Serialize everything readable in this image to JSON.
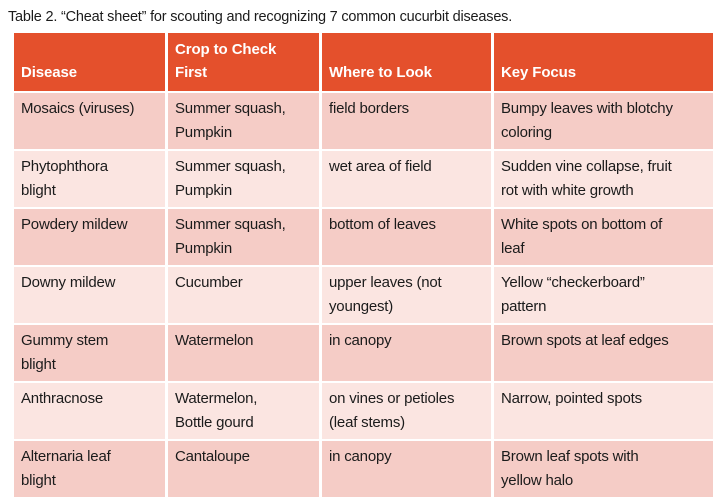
{
  "title": "Table 2. “Cheat sheet” for scouting and recognizing 7 common cucurbit diseases.",
  "table": {
    "columns": [
      "Disease",
      "Crop to Check\nFirst",
      "Where to Look",
      "Key Focus"
    ],
    "rows": [
      [
        "Mosaics (viruses)",
        "Summer squash,\nPumpkin",
        "field borders",
        "Bumpy leaves with blotchy\ncoloring"
      ],
      [
        "Phytophthora\nblight",
        "Summer squash,\nPumpkin",
        "wet area of field",
        "Sudden vine collapse, fruit\nrot with white growth"
      ],
      [
        "Powdery mildew",
        "Summer squash,\nPumpkin",
        "bottom of leaves",
        "White spots on bottom of\nleaf"
      ],
      [
        "Downy mildew",
        "Cucumber",
        "upper leaves (not\nyoungest)",
        "Yellow “checkerboard”\npattern"
      ],
      [
        "Gummy stem\nblight",
        "Watermelon",
        "in canopy",
        "Brown spots at leaf edges"
      ],
      [
        "Anthracnose",
        "Watermelon,\nBottle gourd",
        "on vines or petioles\n(leaf stems)",
        "Narrow, pointed spots"
      ],
      [
        "Alternaria leaf\nblight",
        "Cantaloupe",
        "in canopy",
        "Brown leaf spots with\nyellow halo"
      ]
    ]
  },
  "colors": {
    "header_bg": "#E4502C",
    "header_text": "#FFFFFF",
    "row_odd_bg": "#F5CCC6",
    "row_even_bg": "#FBE5E1",
    "body_text": "#1B1B1B",
    "page_bg": "#FFFFFF"
  }
}
